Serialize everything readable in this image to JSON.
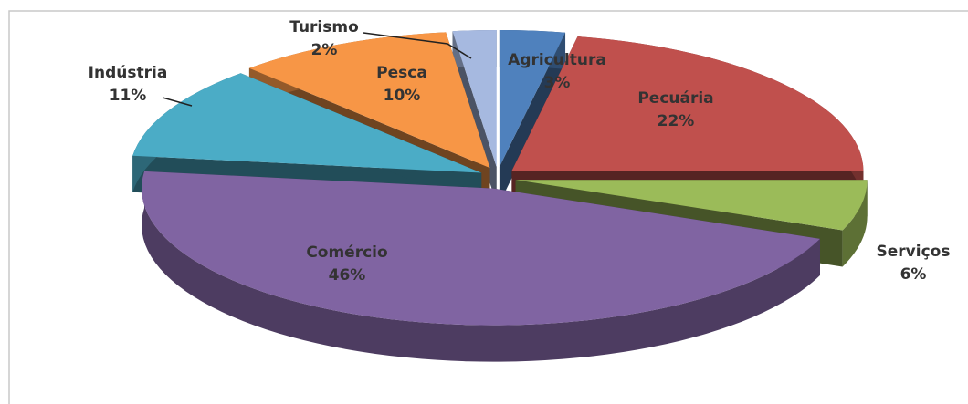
{
  "chart_data": {
    "type": "pie3d",
    "categories": [
      "Agricultura",
      "Pecuária",
      "Serviços",
      "Comércio",
      "Indústria",
      "Pesca",
      "Turismo"
    ],
    "values": [
      3,
      22,
      6,
      46,
      11,
      10,
      2
    ],
    "value_labels": [
      "3%",
      "22%",
      "6%",
      "46%",
      "11%",
      "10%",
      "2%"
    ],
    "colors": [
      "#4f81bd",
      "#c0504d",
      "#9bbb59",
      "#8064a2",
      "#4bacc6",
      "#f79646",
      "#a6b9e0"
    ]
  }
}
